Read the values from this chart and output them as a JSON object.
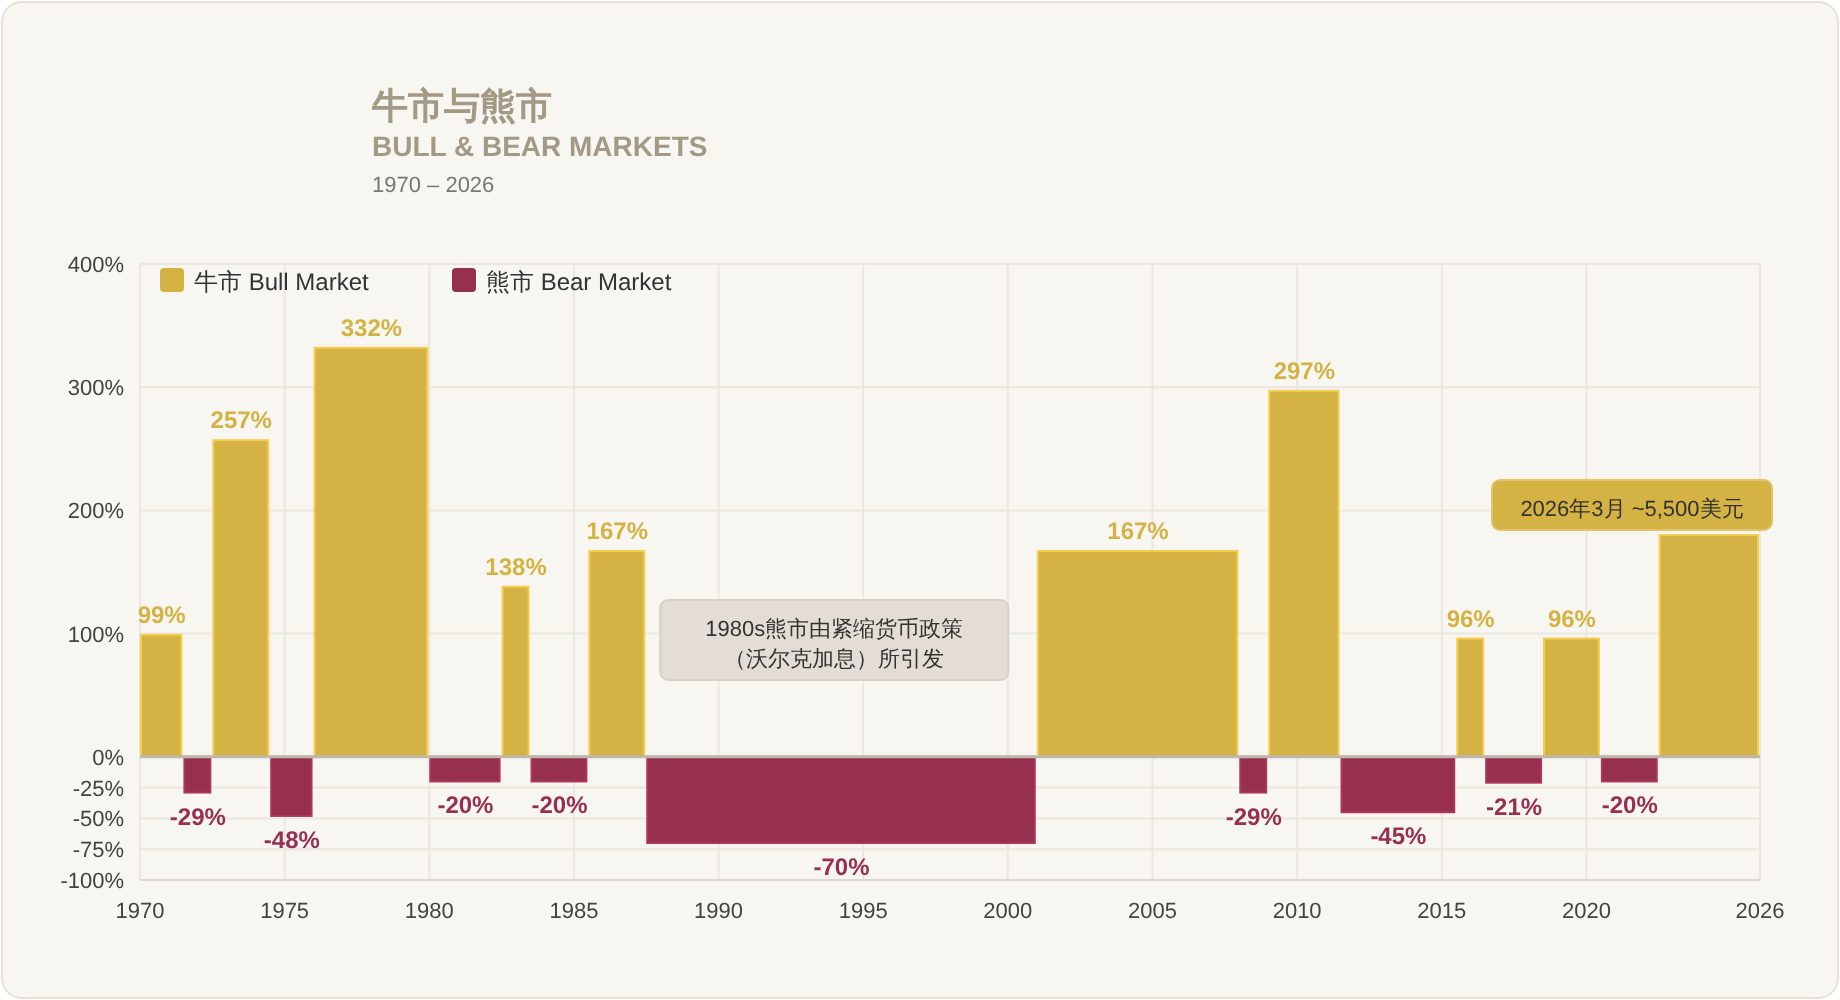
{
  "chart_data": {
    "type": "bar",
    "title": "牛市与熊市",
    "subtitle": "BULL & BEAR MARKETS",
    "annotations": [
      "1970 – 2026",
      "1980s熊市由紧缩货币政策（沃尔克加息）所引发",
      "2026年3月 ~5,500美元"
    ],
    "xlim": [
      1970,
      2026
    ],
    "xticks": [
      1970,
      1975,
      1980,
      1985,
      1990,
      1995,
      2000,
      2005,
      2010,
      2015,
      2020,
      2026
    ],
    "ylim": [
      -100,
      400
    ],
    "yticks": [
      {
        "value": -100,
        "label": "-100%"
      },
      {
        "value": -75,
        "label": "-75%"
      },
      {
        "value": -50,
        "label": "-50%"
      },
      {
        "value": -25,
        "label": "-25%"
      },
      {
        "value": 0,
        "label": "0%"
      },
      {
        "value": 100,
        "label": "100%"
      },
      {
        "value": 200,
        "label": "200%"
      },
      {
        "value": 300,
        "label": "300%"
      },
      {
        "value": 400,
        "label": "400%"
      }
    ],
    "grid": true,
    "legend": "top left",
    "series": [
      {
        "name": "牛市 Bull Market",
        "color": "#d4b244",
        "x": [
          1970.75,
          1973.5,
          1978,
          1983,
          1986.5,
          2004.5,
          2010.25,
          2016,
          2019.5,
          2024.25
        ],
        "values": [
          99,
          257,
          332,
          138,
          167,
          167,
          297,
          96,
          96,
          180
        ],
        "value_labels": [
          "99%",
          "257%",
          "332%",
          "138%",
          "167%",
          "167%",
          "297%",
          "96%",
          "96%",
          null
        ]
      },
      {
        "name": "熊市 Bear Market",
        "color": "#972f4e",
        "x": [
          1972,
          1975.25,
          1981.25,
          1984.5,
          1994.25,
          2008.5,
          2013.5,
          2017.5,
          2021.5
        ],
        "values": [
          -29,
          -48,
          -20,
          -20,
          -70,
          -29,
          -45,
          -21,
          -20
        ],
        "value_labels": [
          "-29%",
          "-48%",
          "-20%",
          "-20%",
          "-70%",
          "-29%",
          "-45%",
          "-21%",
          "-20%"
        ]
      }
    ]
  }
}
